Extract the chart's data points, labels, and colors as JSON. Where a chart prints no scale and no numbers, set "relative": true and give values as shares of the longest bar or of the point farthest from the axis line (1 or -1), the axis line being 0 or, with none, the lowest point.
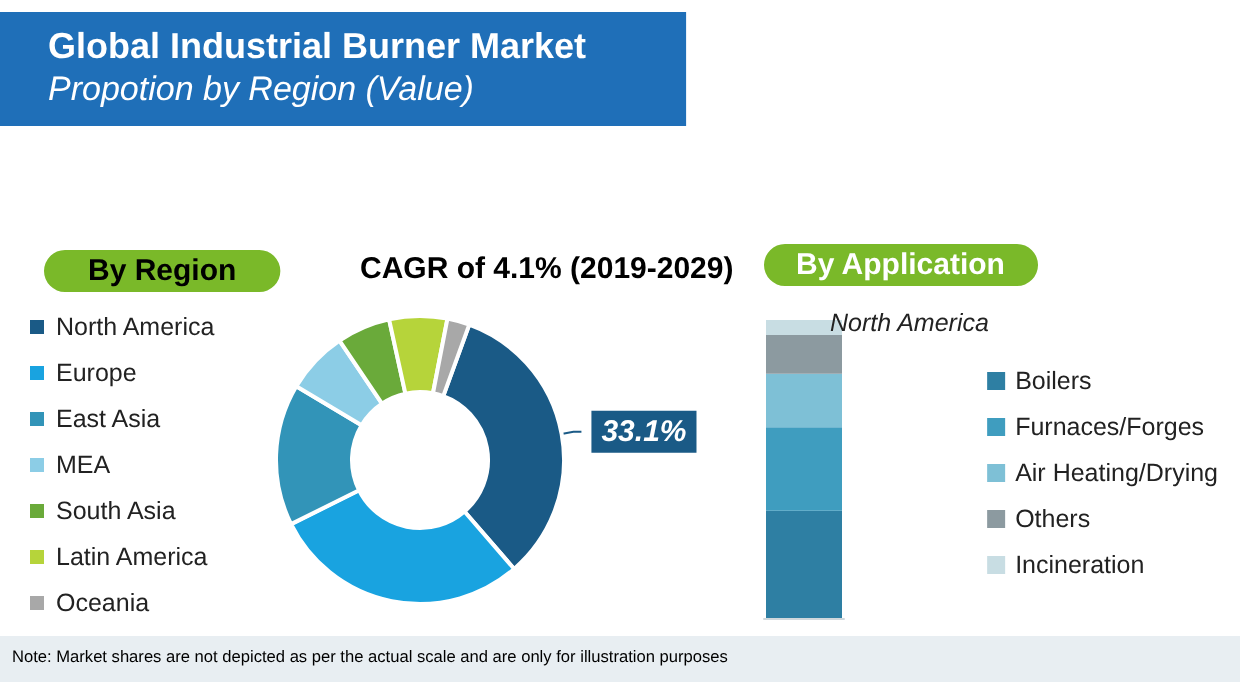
{
  "chart_data": [
    {
      "type": "donut",
      "title": "Global Industrial Burner Market",
      "subtitle": "Propotion by Region (Value)",
      "annotations": [
        "By Region",
        "CAGR of 4.1% (2019-2029)",
        "Note: Market shares are not depicted as per the actual scale and are only for illustration purposes"
      ],
      "categories": [
        "North America",
        "Europe",
        "East Asia",
        "MEA",
        "South Asia",
        "Latin America",
        "Oceania"
      ],
      "values": [
        33.1,
        29.0,
        15.9,
        7.0,
        6.0,
        6.5,
        2.5
      ],
      "value_labels": [
        "33.1%",
        null,
        null,
        null,
        null,
        null,
        null
      ],
      "colors": [
        "#1a5a86",
        "#19a3e0",
        "#3294b8",
        "#8ccde6",
        "#6aaa3a",
        "#b6d43a",
        "#a8a8a8"
      ],
      "legend": "left"
    },
    {
      "type": "bar",
      "title": "By Application",
      "subtitle": "North America",
      "stacked": true,
      "relative": true,
      "categories": [
        null
      ],
      "series": [
        {
          "name": "Boilers",
          "color": "#2e7fa3",
          "values": [
            0.36
          ]
        },
        {
          "name": "Furnaces/Forges",
          "color": "#3f9dbf",
          "values": [
            0.28
          ]
        },
        {
          "name": "Air Heating/Drying",
          "color": "#7ec0d6",
          "values": [
            0.18
          ]
        },
        {
          "name": "Others",
          "color": "#8c9aa0",
          "values": [
            0.13
          ]
        },
        {
          "name": "Incineration",
          "color": "#c8dde3",
          "values": [
            0.05
          ]
        }
      ],
      "legend": "right"
    }
  ]
}
